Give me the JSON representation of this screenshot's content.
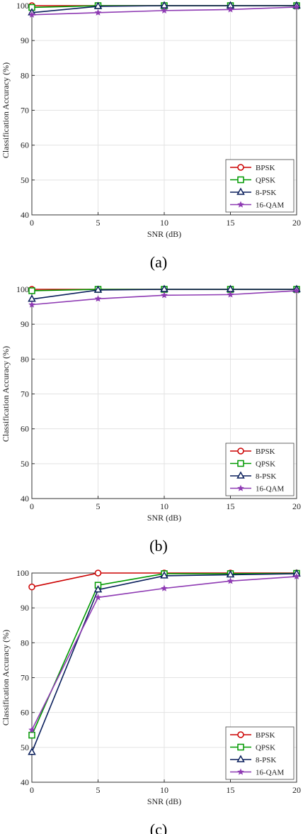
{
  "chart_data": [
    {
      "type": "line",
      "caption": "(a)",
      "xlabel": "SNR (dB)",
      "ylabel": "Classification Accuracy (%)",
      "x": [
        0,
        5,
        10,
        15,
        20
      ],
      "xlim": [
        0,
        20
      ],
      "ylim": [
        40,
        100
      ],
      "xticks": [
        "0",
        "5",
        "10",
        "15",
        "20"
      ],
      "yticks": [
        "40",
        "50",
        "60",
        "70",
        "80",
        "90",
        "100"
      ],
      "grid": true,
      "legend_position": "bottom-right",
      "series": [
        {
          "name": "BPSK",
          "color": "#cc0000",
          "marker": "circle",
          "values": [
            100,
            100,
            100,
            100,
            100
          ]
        },
        {
          "name": "QPSK",
          "color": "#009900",
          "marker": "square",
          "values": [
            99.5,
            100,
            100,
            100,
            100
          ]
        },
        {
          "name": "8-PSK",
          "color": "#0a1f5c",
          "marker": "triangle",
          "values": [
            98,
            99.8,
            100,
            100,
            100
          ]
        },
        {
          "name": "16-QAM",
          "color": "#8e3ab3",
          "marker": "star",
          "values": [
            97.4,
            98,
            98.6,
            98.9,
            99.6
          ]
        }
      ]
    },
    {
      "type": "line",
      "caption": "(b)",
      "xlabel": "SNR (dB)",
      "ylabel": "Classification Accuracy (%)",
      "x": [
        0,
        5,
        10,
        15,
        20
      ],
      "xlim": [
        0,
        20
      ],
      "ylim": [
        40,
        100
      ],
      "xticks": [
        "0",
        "5",
        "10",
        "15",
        "20"
      ],
      "yticks": [
        "40",
        "50",
        "60",
        "70",
        "80",
        "90",
        "100"
      ],
      "grid": true,
      "legend_position": "bottom-right",
      "series": [
        {
          "name": "BPSK",
          "color": "#cc0000",
          "marker": "circle",
          "values": [
            100,
            100,
            100,
            100,
            100
          ]
        },
        {
          "name": "QPSK",
          "color": "#009900",
          "marker": "square",
          "values": [
            99.6,
            100,
            100,
            100,
            100
          ]
        },
        {
          "name": "8-PSK",
          "color": "#0a1f5c",
          "marker": "triangle",
          "values": [
            97.2,
            99.8,
            100,
            100,
            100
          ]
        },
        {
          "name": "16-QAM",
          "color": "#8e3ab3",
          "marker": "star",
          "values": [
            95.6,
            97.3,
            98.3,
            98.5,
            99.6
          ]
        }
      ]
    },
    {
      "type": "line",
      "caption": "(c)",
      "xlabel": "SNR (dB)",
      "ylabel": "Classification Accuracy (%)",
      "x": [
        0,
        5,
        10,
        15,
        20
      ],
      "xlim": [
        0,
        20
      ],
      "ylim": [
        40,
        100
      ],
      "xticks": [
        "0",
        "5",
        "10",
        "15",
        "20"
      ],
      "yticks": [
        "40",
        "50",
        "60",
        "70",
        "80",
        "90",
        "100"
      ],
      "grid": true,
      "legend_position": "bottom-right",
      "series": [
        {
          "name": "BPSK",
          "color": "#cc0000",
          "marker": "circle",
          "values": [
            96,
            100,
            100,
            100,
            100
          ]
        },
        {
          "name": "QPSK",
          "color": "#009900",
          "marker": "square",
          "values": [
            53.5,
            96.5,
            99.8,
            99.8,
            99.9
          ]
        },
        {
          "name": "8-PSK",
          "color": "#0a1f5c",
          "marker": "triangle",
          "values": [
            48.6,
            95.2,
            99.2,
            99.5,
            99.8
          ]
        },
        {
          "name": "16-QAM",
          "color": "#8e3ab3",
          "marker": "star",
          "values": [
            55,
            93,
            95.6,
            97.7,
            99
          ]
        }
      ]
    }
  ]
}
